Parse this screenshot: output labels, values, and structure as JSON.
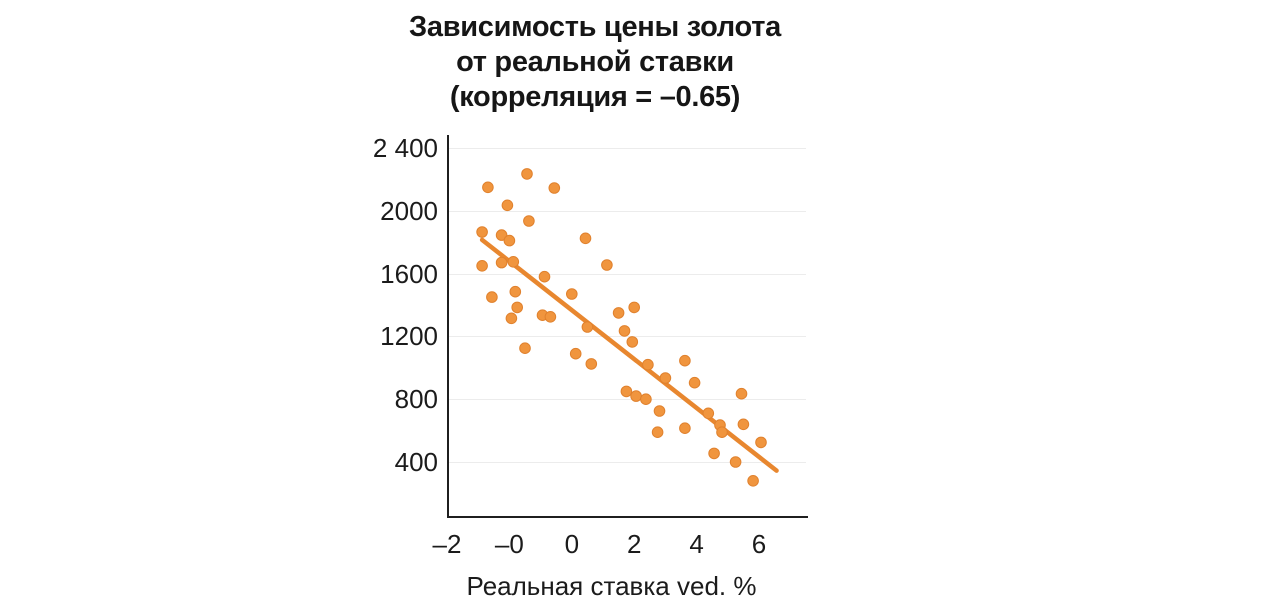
{
  "colors": {
    "dot_fill": "#F0953E",
    "dot_edge": "#E0812D",
    "trend_line": "#E8872F",
    "grid": "#ECECEC",
    "axis": "#1F1F1F",
    "text": "#1B1B1B"
  },
  "chart_data": {
    "type": "scatter",
    "title": "Зависимость цены золота от реальной ставки (корреляция = –0.65)",
    "title_lines": [
      "Зависимость цены золота",
      "от реальной ставки",
      "(корреляция = –0.65)"
    ],
    "correlation": -0.65,
    "xlabel": "Реальная ставка ved. %",
    "ylabel": "",
    "x_tick_labels": [
      "–2",
      "–0",
      "0",
      "2",
      "4",
      "6"
    ],
    "y_tick_labels": [
      "2 400",
      "2000",
      "1600",
      "1200",
      "800",
      "400"
    ],
    "y_ticks": [
      2400,
      2000,
      1600,
      1200,
      800,
      400
    ],
    "xlim": [
      -2,
      7.2
    ],
    "ylim": [
      60,
      2480
    ],
    "grid": "horizontal",
    "legend": "none",
    "points": [
      [
        0.05,
        2235
      ],
      [
        -0.95,
        2150
      ],
      [
        0.75,
        2145
      ],
      [
        -0.45,
        2035
      ],
      [
        0.1,
        1935
      ],
      [
        -1.1,
        1865
      ],
      [
        -0.6,
        1845
      ],
      [
        -0.4,
        1810
      ],
      [
        1.55,
        1825
      ],
      [
        -1.1,
        1650
      ],
      [
        -0.6,
        1670
      ],
      [
        -0.3,
        1675
      ],
      [
        2.1,
        1655
      ],
      [
        0.5,
        1580
      ],
      [
        -0.85,
        1450
      ],
      [
        -0.25,
        1485
      ],
      [
        1.2,
        1470
      ],
      [
        -0.2,
        1385
      ],
      [
        -0.35,
        1315
      ],
      [
        0.45,
        1335
      ],
      [
        0.65,
        1325
      ],
      [
        2.4,
        1350
      ],
      [
        2.8,
        1385
      ],
      [
        1.6,
        1260
      ],
      [
        2.55,
        1235
      ],
      [
        2.75,
        1165
      ],
      [
        0.0,
        1125
      ],
      [
        1.3,
        1090
      ],
      [
        1.7,
        1025
      ],
      [
        3.15,
        1020
      ],
      [
        4.1,
        1045
      ],
      [
        3.6,
        935
      ],
      [
        4.35,
        905
      ],
      [
        2.6,
        850
      ],
      [
        2.85,
        820
      ],
      [
        3.1,
        800
      ],
      [
        3.45,
        725
      ],
      [
        4.7,
        710
      ],
      [
        5.55,
        835
      ],
      [
        5.0,
        635
      ],
      [
        5.05,
        590
      ],
      [
        5.6,
        640
      ],
      [
        3.4,
        590
      ],
      [
        4.1,
        615
      ],
      [
        6.05,
        525
      ],
      [
        4.85,
        455
      ],
      [
        5.4,
        400
      ],
      [
        5.85,
        280
      ]
    ],
    "trend_line": {
      "x1": -1.1,
      "y1": 1815,
      "x2": 6.45,
      "y2": 345
    }
  }
}
